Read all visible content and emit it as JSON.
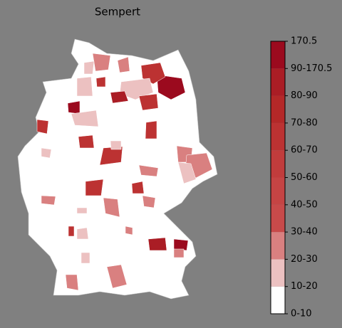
{
  "title": "Sempert",
  "colorbar": {
    "labels": [
      "0-10",
      "10-20",
      "20-30",
      "30-40",
      "40-50",
      "50-60",
      "60-70",
      "70-80",
      "80-90",
      "90-170.5",
      "170.5"
    ],
    "colors": [
      "#ffffff",
      "#ecc1c1",
      "#d98080",
      "#c84a4a",
      "#c54444",
      "#c13c3c",
      "#bc3232",
      "#b42828",
      "#aa1d25",
      "#9b0a1e"
    ]
  }
}
